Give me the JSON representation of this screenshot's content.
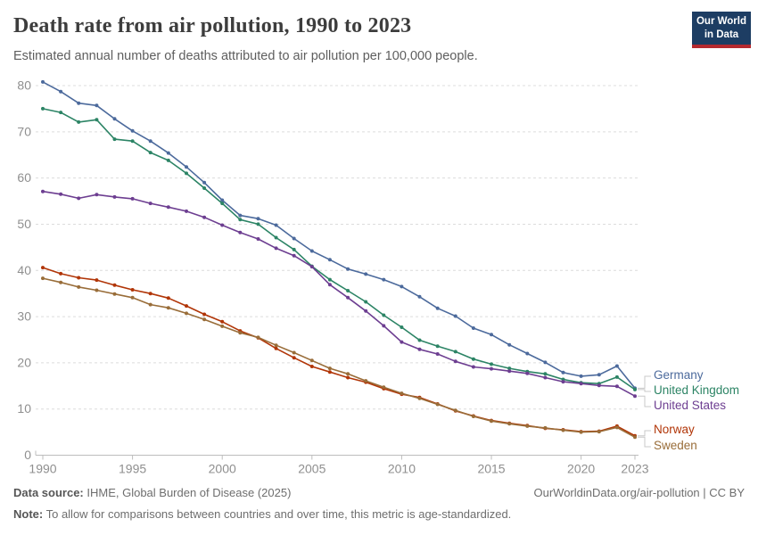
{
  "header": {
    "title": "Death rate from air pollution, 1990 to 2023",
    "subtitle": "Estimated annual number of deaths attributed to air pollution per 100,000 people.",
    "logo": {
      "line1": "Our World",
      "line2": "in Data"
    }
  },
  "chart_data": {
    "type": "line",
    "title": "Death rate from air pollution, 1990 to 2023",
    "x_label": "",
    "y_label": "",
    "x": [
      1990,
      1991,
      1992,
      1993,
      1994,
      1995,
      1996,
      1997,
      1998,
      1999,
      2000,
      2001,
      2002,
      2003,
      2004,
      2005,
      2006,
      2007,
      2008,
      2009,
      2010,
      2011,
      2012,
      2013,
      2014,
      2015,
      2016,
      2017,
      2018,
      2019,
      2020,
      2021,
      2022,
      2023
    ],
    "x_ticks": [
      1990,
      1995,
      2000,
      2005,
      2010,
      2015,
      2020,
      2023
    ],
    "y_ticks": [
      0,
      10,
      20,
      30,
      40,
      50,
      60,
      70,
      80
    ],
    "ylim": [
      0,
      80
    ],
    "grid": "horizontal-dashed",
    "legend_position": "right-of-line-ends",
    "series": [
      {
        "name": "Germany",
        "color": "#4C6A9C",
        "values": [
          80.8,
          78.7,
          76.2,
          75.7,
          72.8,
          70.2,
          68.0,
          65.4,
          62.4,
          59.0,
          55.2,
          51.9,
          51.2,
          49.8,
          46.9,
          44.2,
          42.3,
          40.3,
          39.2,
          38.0,
          36.5,
          34.3,
          31.8,
          30.1,
          27.5,
          26.1,
          23.9,
          22.0,
          20.1,
          17.9,
          17.1,
          17.4,
          19.3,
          14.5
        ]
      },
      {
        "name": "United Kingdom",
        "color": "#2C8465",
        "values": [
          75.0,
          74.2,
          72.1,
          72.6,
          68.4,
          68.0,
          65.5,
          63.8,
          61.0,
          57.8,
          54.5,
          51.0,
          50.0,
          47.1,
          44.5,
          40.9,
          38.0,
          35.6,
          33.2,
          30.3,
          27.7,
          24.9,
          23.6,
          22.4,
          20.8,
          19.7,
          18.8,
          18.1,
          17.6,
          16.4,
          15.7,
          15.5,
          16.9,
          14.2
        ]
      },
      {
        "name": "United States",
        "color": "#6D3E91",
        "values": [
          57.1,
          56.5,
          55.6,
          56.4,
          55.9,
          55.5,
          54.5,
          53.7,
          52.8,
          51.5,
          49.8,
          48.2,
          46.8,
          44.8,
          43.2,
          40.8,
          36.9,
          34.1,
          31.2,
          28.0,
          24.5,
          22.9,
          21.9,
          20.3,
          19.1,
          18.7,
          18.2,
          17.7,
          16.8,
          15.9,
          15.5,
          15.1,
          14.9,
          12.8
        ]
      },
      {
        "name": "Norway",
        "color": "#B13507",
        "values": [
          40.6,
          39.3,
          38.4,
          37.9,
          36.8,
          35.8,
          35.0,
          34.0,
          32.3,
          30.5,
          28.9,
          26.9,
          25.4,
          23.1,
          21.1,
          19.2,
          18.0,
          16.8,
          15.8,
          14.4,
          13.2,
          12.5,
          11.1,
          9.6,
          8.5,
          7.5,
          6.9,
          6.4,
          5.8,
          5.5,
          5.1,
          5.2,
          6.3,
          4.2
        ]
      },
      {
        "name": "Sweden",
        "color": "#996D39",
        "values": [
          38.3,
          37.4,
          36.4,
          35.7,
          34.9,
          34.1,
          32.6,
          31.9,
          30.7,
          29.4,
          27.9,
          26.5,
          25.5,
          23.8,
          22.2,
          20.5,
          18.8,
          17.6,
          16.1,
          14.7,
          13.4,
          12.3,
          11.0,
          9.7,
          8.4,
          7.4,
          6.8,
          6.3,
          5.9,
          5.4,
          5.0,
          5.1,
          6.0,
          3.9
        ]
      }
    ]
  },
  "footer": {
    "source_label": "Data source:",
    "source_text": " IHME, Global Burden of Disease (2025)",
    "link_text": "OurWorldinData.org/air-pollution | CC BY",
    "note_label": "Note:",
    "note_text": " To allow for comparisons between countries and over time, this metric is age-standardized."
  },
  "colors": {
    "axis_text": "#8f8f8f",
    "gridline": "#dcdcdc",
    "axis_line": "#bdbdbd",
    "connector": "#c8c8c8",
    "logo_bg": "#1d3d63",
    "logo_stripe": "#b5292f"
  }
}
